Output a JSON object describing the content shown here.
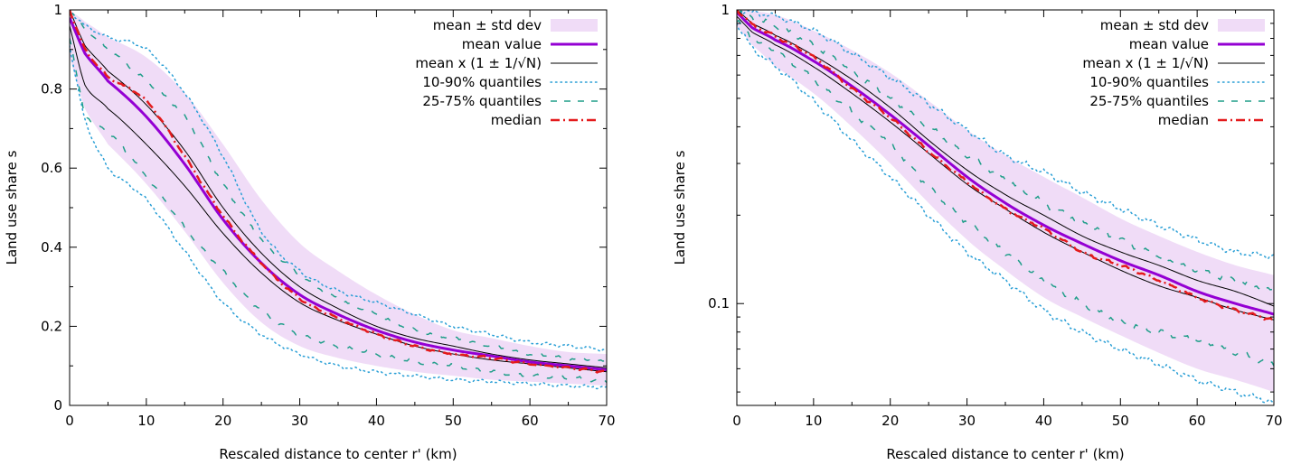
{
  "chart_data": [
    {
      "type": "line",
      "yscale": "linear",
      "xlabel": "Rescaled distance to center r' (km)",
      "ylabel": "Land use share s",
      "xlim": [
        0,
        70
      ],
      "ylim": [
        0,
        1
      ],
      "xticks": [
        0,
        10,
        20,
        30,
        40,
        50,
        60,
        70
      ],
      "yticks": [
        0,
        0.2,
        0.4,
        0.6,
        0.8,
        1
      ],
      "ytick_labels": [
        "0",
        "0.2",
        "0.4",
        "0.6",
        "0.8",
        "1"
      ],
      "legend_position": "top-right",
      "legend": [
        {
          "key": "band",
          "label": "mean ± std dev"
        },
        {
          "key": "mean",
          "label": "mean value"
        },
        {
          "key": "meanN",
          "label": "mean x (1 ± 1/√N)"
        },
        {
          "key": "q1090",
          "label": "10-90% quantiles"
        },
        {
          "key": "q2575",
          "label": "25-75% quantiles"
        },
        {
          "key": "median",
          "label": "median"
        }
      ],
      "x": [
        0,
        2,
        5,
        10,
        15,
        20,
        25,
        30,
        35,
        40,
        45,
        50,
        55,
        60,
        65,
        70
      ],
      "series": {
        "mean": [
          0.98,
          0.89,
          0.82,
          0.73,
          0.61,
          0.47,
          0.36,
          0.28,
          0.23,
          0.19,
          0.16,
          0.14,
          0.125,
          0.11,
          0.1,
          0.09
        ],
        "meanN_upper": [
          1.0,
          0.91,
          0.845,
          0.76,
          0.645,
          0.5,
          0.385,
          0.3,
          0.245,
          0.2,
          0.17,
          0.15,
          0.13,
          0.115,
          0.105,
          0.095
        ],
        "meanN_lower": [
          0.96,
          0.81,
          0.75,
          0.66,
          0.555,
          0.435,
          0.335,
          0.26,
          0.215,
          0.18,
          0.15,
          0.13,
          0.115,
          0.105,
          0.095,
          0.085
        ],
        "median": [
          1.0,
          0.9,
          0.83,
          0.77,
          0.63,
          0.48,
          0.36,
          0.27,
          0.22,
          0.18,
          0.15,
          0.13,
          0.12,
          0.105,
          0.095,
          0.085
        ],
        "band_upper": [
          1.0,
          0.97,
          0.93,
          0.88,
          0.79,
          0.66,
          0.52,
          0.41,
          0.34,
          0.28,
          0.23,
          0.19,
          0.17,
          0.15,
          0.135,
          0.13
        ],
        "band_lower": [
          0.88,
          0.75,
          0.66,
          0.56,
          0.44,
          0.31,
          0.21,
          0.15,
          0.12,
          0.1,
          0.085,
          0.075,
          0.065,
          0.06,
          0.055,
          0.05
        ],
        "q90": [
          1.0,
          0.96,
          0.93,
          0.9,
          0.79,
          0.63,
          0.44,
          0.34,
          0.29,
          0.26,
          0.23,
          0.2,
          0.18,
          0.16,
          0.15,
          0.14
        ],
        "q75": [
          1.0,
          0.95,
          0.9,
          0.82,
          0.73,
          0.56,
          0.42,
          0.33,
          0.27,
          0.23,
          0.19,
          0.17,
          0.15,
          0.13,
          0.12,
          0.11
        ],
        "q25": [
          0.93,
          0.74,
          0.69,
          0.58,
          0.45,
          0.34,
          0.24,
          0.18,
          0.15,
          0.13,
          0.11,
          0.1,
          0.085,
          0.075,
          0.07,
          0.06
        ],
        "q10": [
          0.91,
          0.72,
          0.6,
          0.52,
          0.39,
          0.26,
          0.18,
          0.13,
          0.1,
          0.085,
          0.075,
          0.065,
          0.06,
          0.055,
          0.05,
          0.045
        ]
      }
    },
    {
      "type": "line",
      "yscale": "log",
      "xlabel": "Rescaled distance to center r' (km)",
      "ylabel": "Land use share s",
      "xlim": [
        0,
        70
      ],
      "ylim": [
        0.045,
        1
      ],
      "xticks": [
        0,
        10,
        20,
        30,
        40,
        50,
        60,
        70
      ],
      "yticks": [
        0.1,
        1
      ],
      "ytick_labels": [
        "0.1",
        "1"
      ],
      "legend_position": "top-right",
      "legend": [
        {
          "key": "band",
          "label": "mean ± std dev"
        },
        {
          "key": "mean",
          "label": "mean value"
        },
        {
          "key": "meanN",
          "label": "mean x (1 ± 1/√N)"
        },
        {
          "key": "q1090",
          "label": "10-90% quantiles"
        },
        {
          "key": "q2575",
          "label": "25-75% quantiles"
        },
        {
          "key": "median",
          "label": "median"
        }
      ],
      "x": [
        0,
        2,
        5,
        10,
        15,
        20,
        25,
        30,
        35,
        40,
        45,
        50,
        55,
        60,
        65,
        70
      ],
      "series": {
        "mean": [
          0.98,
          0.87,
          0.79,
          0.67,
          0.55,
          0.44,
          0.345,
          0.27,
          0.22,
          0.185,
          0.16,
          0.14,
          0.125,
          0.11,
          0.1,
          0.092
        ],
        "meanN_upper": [
          1.0,
          0.9,
          0.82,
          0.7,
          0.58,
          0.465,
          0.36,
          0.285,
          0.235,
          0.2,
          0.17,
          0.15,
          0.135,
          0.12,
          0.11,
          0.098
        ],
        "meanN_lower": [
          0.95,
          0.84,
          0.76,
          0.64,
          0.52,
          0.415,
          0.325,
          0.255,
          0.21,
          0.175,
          0.15,
          0.13,
          0.115,
          0.105,
          0.095,
          0.088
        ],
        "median": [
          1.0,
          0.89,
          0.81,
          0.69,
          0.54,
          0.43,
          0.33,
          0.26,
          0.21,
          0.18,
          0.15,
          0.135,
          0.12,
          0.105,
          0.095,
          0.088
        ],
        "band_upper": [
          1.0,
          0.99,
          0.96,
          0.85,
          0.73,
          0.61,
          0.49,
          0.39,
          0.32,
          0.27,
          0.23,
          0.195,
          0.17,
          0.15,
          0.135,
          0.125
        ],
        "band_lower": [
          0.88,
          0.76,
          0.64,
          0.52,
          0.4,
          0.3,
          0.22,
          0.165,
          0.13,
          0.105,
          0.09,
          0.078,
          0.068,
          0.06,
          0.055,
          0.05
        ],
        "q90": [
          1.0,
          0.98,
          0.95,
          0.85,
          0.71,
          0.59,
          0.48,
          0.39,
          0.32,
          0.28,
          0.24,
          0.21,
          0.185,
          0.165,
          0.15,
          0.145
        ],
        "q75": [
          1.0,
          0.94,
          0.88,
          0.76,
          0.62,
          0.5,
          0.4,
          0.32,
          0.265,
          0.22,
          0.19,
          0.165,
          0.145,
          0.13,
          0.12,
          0.11
        ],
        "q25": [
          0.92,
          0.8,
          0.72,
          0.58,
          0.45,
          0.35,
          0.25,
          0.19,
          0.15,
          0.12,
          0.1,
          0.087,
          0.08,
          0.075,
          0.068,
          0.062
        ],
        "q10": [
          0.9,
          0.74,
          0.64,
          0.49,
          0.36,
          0.27,
          0.2,
          0.15,
          0.12,
          0.095,
          0.08,
          0.07,
          0.062,
          0.055,
          0.05,
          0.046
        ]
      }
    }
  ],
  "colors": {
    "band": "#f0dcf7",
    "mean": "#9400d3",
    "meanN": "#000000",
    "q1090": "#2a9fd6",
    "q2575": "#1f9e89",
    "median": "#e41a1c"
  }
}
